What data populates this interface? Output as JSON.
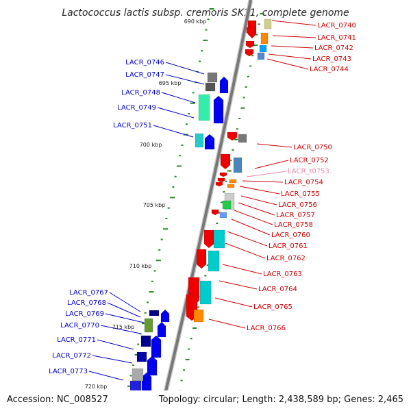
{
  "title": "Lactococcus lactis subsp. cremoris SK11, complete genome",
  "footer": {
    "accession": "Accession: NC_008527",
    "topology": "Topology: circular; Length: 2,438,589 bp; Genes: 2,465"
  },
  "colors": {
    "backbone": "#777777",
    "tick": "#228822",
    "plus_label": "#0000cc",
    "minus_label": "#cc0000",
    "rna_label": "#ee88aa"
  },
  "kbp_labels": [
    "690 kbp",
    "695 kbp",
    "700 kbp",
    "705 kbp",
    "710 kbp",
    "715 kbp",
    "720 kbp"
  ],
  "left_genes": [
    "LACR_0746",
    "LACR_0747",
    "LACR_0748",
    "LACR_0749",
    "LACR_0751",
    "LACR_0767",
    "LACR_0768",
    "LACR_0769",
    "LACR_0770",
    "LACR_0771",
    "LACR_0772",
    "LACR_0773"
  ],
  "right_genes": [
    "LACR_0740",
    "LACR_0741",
    "LACR_0742",
    "LACR_0743",
    "LACR_0744",
    "LACR_0750",
    "LACR_0752",
    "LACR_t0753",
    "LACR_0754",
    "LACR_0755",
    "LACR_0756",
    "LACR_0757",
    "LACR_0758",
    "LACR_0760",
    "LACR_0761",
    "LACR_0762",
    "LACR_0763",
    "LACR_0764",
    "LACR_0765",
    "LACR_0766"
  ]
}
